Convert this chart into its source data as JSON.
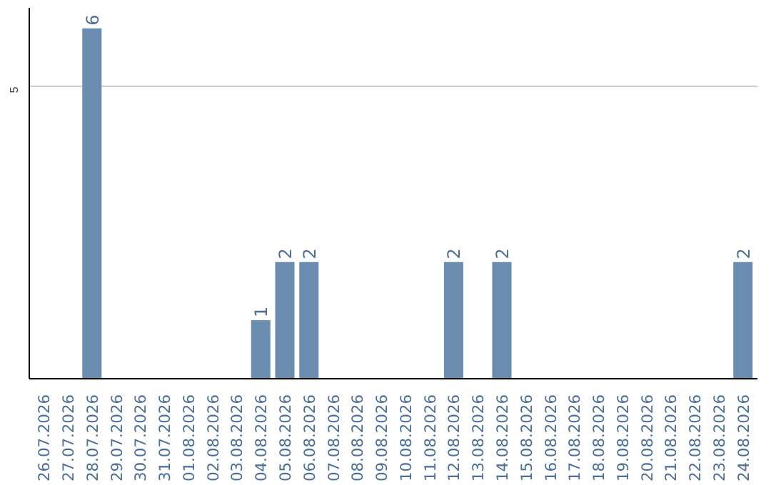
{
  "chart_data": {
    "type": "bar",
    "categories": [
      "26.07.2026",
      "27.07.2026",
      "28.07.2026",
      "29.07.2026",
      "30.07.2026",
      "31.07.2026",
      "01.08.2026",
      "02.08.2026",
      "03.08.2026",
      "04.08.2026",
      "05.08.2026",
      "06.08.2026",
      "07.08.2026",
      "08.08.2026",
      "09.08.2026",
      "10.08.2026",
      "11.08.2026",
      "12.08.2026",
      "13.08.2026",
      "14.08.2026",
      "15.08.2026",
      "16.08.2026",
      "17.08.2026",
      "18.08.2026",
      "19.08.2026",
      "20.08.2026",
      "21.08.2026",
      "22.08.2026",
      "23.08.2026",
      "24.08.2026"
    ],
    "values": [
      0,
      0,
      6,
      0,
      0,
      0,
      0,
      0,
      0,
      1,
      2,
      2,
      0,
      0,
      0,
      0,
      0,
      2,
      0,
      2,
      0,
      0,
      0,
      0,
      0,
      0,
      0,
      0,
      0,
      2
    ],
    "value_labels": [
      null,
      null,
      "6",
      null,
      null,
      null,
      null,
      null,
      null,
      "1",
      "2",
      "2",
      null,
      null,
      null,
      null,
      null,
      "2",
      null,
      "2",
      null,
      null,
      null,
      null,
      null,
      null,
      null,
      null,
      null,
      "2"
    ],
    "color": "#6a8caf",
    "ylim": [
      0,
      6.35
    ],
    "yticks": [
      5
    ],
    "grid": "y"
  }
}
